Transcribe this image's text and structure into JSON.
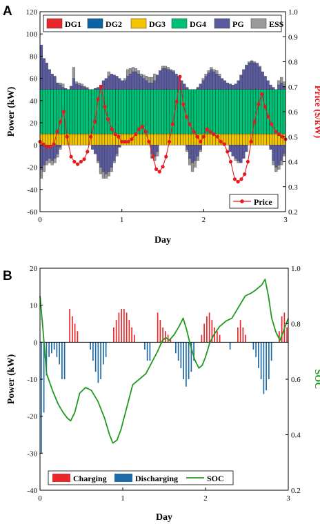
{
  "colors": {
    "DG1": "#e8272a",
    "DG2": "#0a64a4",
    "DG3": "#f5c400",
    "DG4": "#00c277",
    "PG": "#5a5a9e",
    "ESS": "#9a9a9a",
    "price": "#e8191d",
    "charging": "#e8272a",
    "discharging": "#1d6aa6",
    "soc": "#1f9a1f"
  },
  "chart_data": [
    {
      "panel": "A",
      "type": "bar",
      "xlabel": "Day",
      "ylabel": "Power (kW)",
      "y2label": "Price ($/kW)",
      "xlim": [
        0,
        3
      ],
      "ylim": [
        -60,
        120
      ],
      "y2lim": [
        0.2,
        1.0
      ],
      "xticks": [
        "0",
        "1",
        "2",
        "3"
      ],
      "yticks": [
        "-60",
        "-40",
        "-20",
        "0",
        "20",
        "40",
        "60",
        "80",
        "100",
        "120"
      ],
      "y2ticks": [
        "0.2",
        "0.3",
        "0.4",
        "0.5",
        "0.6",
        "0.7",
        "0.8",
        "0.9",
        "1.0"
      ],
      "legend": [
        "DG1",
        "DG2",
        "DG3",
        "DG4",
        "PG",
        "ESS"
      ],
      "legend_placement": "top",
      "legend2": [
        "Price"
      ],
      "legend2_placement": "lower-right",
      "dg3_level": 10,
      "dg4_level": 50,
      "pg_tops": [
        90,
        78,
        74,
        68,
        64,
        62,
        56,
        54,
        52,
        51,
        50,
        53,
        60,
        55,
        54,
        53,
        52,
        51,
        50,
        50,
        51,
        52,
        54,
        58,
        60,
        62,
        64,
        63,
        62,
        60,
        58,
        58,
        62,
        64,
        66,
        66,
        64,
        62,
        60,
        58,
        56,
        56,
        58,
        63,
        67,
        69,
        69,
        68,
        67,
        66,
        64,
        62,
        58,
        55,
        52,
        50,
        50,
        50,
        52,
        55,
        58,
        62,
        65,
        68,
        66,
        64,
        62,
        60,
        58,
        56,
        55,
        54,
        55,
        58,
        63,
        68,
        72,
        74,
        75,
        74,
        73,
        70,
        66,
        62,
        58,
        54,
        52,
        50,
        54,
        56,
        53
      ],
      "ess_tops": [
        0,
        0,
        0,
        0,
        0,
        0,
        0,
        2,
        3,
        0,
        0,
        0,
        10,
        2,
        2,
        2,
        1,
        1,
        0,
        0,
        0,
        0,
        0,
        0,
        0,
        4,
        0,
        0,
        0,
        0,
        0,
        2,
        6,
        5,
        4,
        3,
        3,
        2,
        3,
        4,
        5,
        5,
        6,
        0,
        0,
        2,
        2,
        2,
        1,
        1,
        0,
        0,
        0,
        0,
        0,
        0,
        0,
        0,
        0,
        0,
        2,
        2,
        2,
        2,
        2,
        3,
        2,
        0,
        0,
        0,
        0,
        0,
        0,
        0,
        0,
        0,
        0,
        1,
        1,
        1,
        1,
        1,
        0,
        0,
        0,
        0,
        0,
        0,
        4,
        5,
        4
      ],
      "neg_pg": [
        -22,
        -18,
        -14,
        -12,
        -14,
        -12,
        -8,
        -2,
        0,
        0,
        0,
        0,
        0,
        0,
        0,
        0,
        0,
        0,
        0,
        -4,
        -8,
        -14,
        -20,
        -24,
        -26,
        -24,
        -20,
        -14,
        -8,
        -2,
        0,
        0,
        0,
        0,
        0,
        0,
        0,
        0,
        0,
        0,
        0,
        -8,
        -10,
        -6,
        0,
        0,
        0,
        0,
        0,
        0,
        0,
        0,
        0,
        0,
        -4,
        -12,
        -16,
        -14,
        -10,
        -4,
        0,
        0,
        0,
        0,
        0,
        0,
        0,
        0,
        0,
        0,
        -6,
        -10,
        -12,
        -14,
        -16,
        -12,
        -6,
        0,
        0,
        0,
        0,
        0,
        0,
        0,
        0,
        -4,
        -14,
        -20,
        -18,
        -14,
        -8
      ],
      "neg_ess": [
        -8,
        -6,
        -4,
        -4,
        -4,
        -4,
        -3,
        -2,
        0,
        0,
        0,
        0,
        0,
        0,
        0,
        0,
        0,
        0,
        0,
        0,
        0,
        -2,
        -6,
        -6,
        -4,
        -4,
        -4,
        -2,
        -2,
        0,
        0,
        0,
        0,
        0,
        0,
        0,
        0,
        0,
        0,
        0,
        0,
        -4,
        -4,
        -4,
        0,
        0,
        0,
        0,
        0,
        0,
        0,
        0,
        0,
        0,
        -2,
        -6,
        -8,
        -6,
        -4,
        -2,
        0,
        0,
        0,
        0,
        0,
        0,
        0,
        0,
        0,
        0,
        0,
        0,
        -2,
        -2,
        0,
        0,
        0,
        0,
        0,
        0,
        0,
        0,
        0,
        0,
        0,
        0,
        -4,
        -4,
        -4,
        -4,
        -2
      ],
      "price_x": [
        0,
        0.04,
        0.08,
        0.12,
        0.17,
        0.21,
        0.25,
        0.29,
        0.33,
        0.38,
        0.42,
        0.46,
        0.5,
        0.54,
        0.58,
        0.62,
        0.67,
        0.71,
        0.75,
        0.79,
        0.83,
        0.88,
        0.92,
        0.96,
        1.0,
        1.04,
        1.08,
        1.12,
        1.17,
        1.21,
        1.25,
        1.29,
        1.33,
        1.38,
        1.42,
        1.46,
        1.5,
        1.54,
        1.58,
        1.62,
        1.67,
        1.71,
        1.75,
        1.79,
        1.83,
        1.88,
        1.92,
        1.96,
        2.0,
        2.04,
        2.08,
        2.12,
        2.17,
        2.21,
        2.25,
        2.29,
        2.33,
        2.38,
        2.42,
        2.46,
        2.5,
        2.54,
        2.58,
        2.62,
        2.67,
        2.71,
        2.75,
        2.79,
        2.83,
        2.88,
        2.92,
        2.96,
        3.0
      ],
      "price_y": [
        0.48,
        0.47,
        0.46,
        0.46,
        0.47,
        0.52,
        0.56,
        0.6,
        0.5,
        0.42,
        0.4,
        0.39,
        0.4,
        0.41,
        0.44,
        0.5,
        0.56,
        0.65,
        0.7,
        0.62,
        0.57,
        0.53,
        0.51,
        0.5,
        0.48,
        0.48,
        0.48,
        0.49,
        0.51,
        0.53,
        0.54,
        0.52,
        0.48,
        0.42,
        0.37,
        0.36,
        0.38,
        0.42,
        0.48,
        0.55,
        0.64,
        0.74,
        0.63,
        0.58,
        0.55,
        0.52,
        0.5,
        0.48,
        0.5,
        0.53,
        0.52,
        0.51,
        0.5,
        0.48,
        0.47,
        0.44,
        0.4,
        0.33,
        0.32,
        0.33,
        0.35,
        0.4,
        0.48,
        0.56,
        0.63,
        0.67,
        0.62,
        0.58,
        0.55,
        0.52,
        0.51,
        0.5,
        0.49
      ]
    },
    {
      "panel": "B",
      "type": "bar",
      "xlabel": "Day",
      "ylabel": "Power (kW)",
      "y2label": "SOC",
      "xlim": [
        0,
        3
      ],
      "ylim": [
        -40,
        20
      ],
      "y2lim": [
        0.2,
        1.0
      ],
      "xticks": [
        "0",
        "1",
        "2",
        "3"
      ],
      "yticks": [
        "-40",
        "-30",
        "-20",
        "-10",
        "0",
        "10",
        "20"
      ],
      "y2ticks": [
        "0.2",
        "0.4",
        "0.6",
        "0.8",
        "1.0"
      ],
      "legend": [
        "Charging",
        "Discharging",
        "SOC"
      ],
      "legend_placement": "bottom",
      "power": [
        -30,
        -19,
        -9,
        -4,
        -3,
        -2,
        -4,
        -6,
        -10,
        -10,
        0,
        9,
        7,
        5,
        3,
        0,
        0,
        0,
        0,
        -2,
        -5,
        -8,
        -11,
        -10,
        -6,
        -4,
        0,
        0,
        4,
        6,
        8,
        9,
        9,
        8,
        6,
        4,
        2,
        0,
        0,
        0,
        -2,
        -5,
        -5,
        0,
        0,
        8,
        6,
        4,
        3,
        2,
        1,
        0,
        -3,
        -5,
        -7,
        -10,
        -12,
        -10,
        -8,
        -5,
        0,
        0,
        2,
        5,
        7,
        8,
        6,
        4,
        3,
        2,
        0,
        0,
        0,
        -2,
        0,
        0,
        4,
        6,
        4,
        2,
        0,
        0,
        -2,
        -4,
        -7,
        -10,
        -14,
        -13,
        -10,
        -5,
        0,
        0,
        3,
        7,
        8,
        4
      ],
      "soc_x": [
        0,
        0.03,
        0.08,
        0.15,
        0.22,
        0.28,
        0.33,
        0.37,
        0.42,
        0.48,
        0.55,
        0.62,
        0.7,
        0.78,
        0.84,
        0.88,
        0.93,
        0.98,
        1.05,
        1.12,
        1.2,
        1.28,
        1.35,
        1.42,
        1.48,
        1.52,
        1.56,
        1.62,
        1.68,
        1.73,
        1.77,
        1.82,
        1.87,
        1.92,
        1.96,
        2.0,
        2.05,
        2.1,
        2.17,
        2.25,
        2.32,
        2.4,
        2.48,
        2.55,
        2.6,
        2.64,
        2.68,
        2.72,
        2.76,
        2.8,
        2.85,
        2.9,
        2.95,
        3.0
      ],
      "soc_y": [
        0.9,
        0.8,
        0.62,
        0.56,
        0.51,
        0.48,
        0.46,
        0.45,
        0.48,
        0.55,
        0.57,
        0.56,
        0.52,
        0.46,
        0.4,
        0.37,
        0.38,
        0.42,
        0.5,
        0.58,
        0.6,
        0.62,
        0.66,
        0.7,
        0.74,
        0.75,
        0.74,
        0.76,
        0.79,
        0.82,
        0.78,
        0.72,
        0.67,
        0.64,
        0.65,
        0.68,
        0.73,
        0.76,
        0.79,
        0.81,
        0.82,
        0.86,
        0.9,
        0.91,
        0.92,
        0.93,
        0.94,
        0.96,
        0.9,
        0.82,
        0.77,
        0.74,
        0.78,
        0.82
      ]
    }
  ]
}
